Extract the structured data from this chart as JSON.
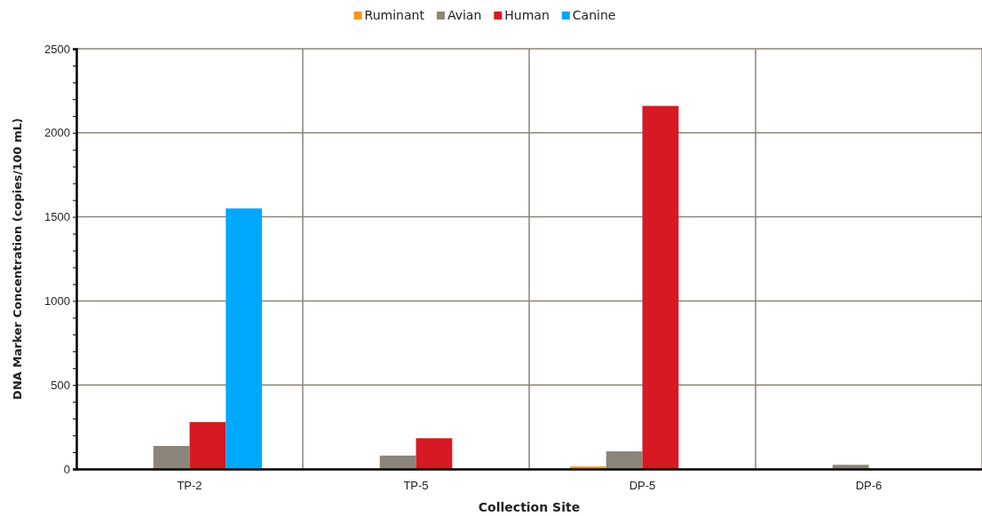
{
  "chart_data": {
    "type": "bar",
    "xlabel": "Collection Site",
    "ylabel": "DNA Marker Concentration (copies/100 mL)",
    "categories": [
      "TP-2",
      "TP-5",
      "DP-5",
      "DP-6"
    ],
    "series": [
      {
        "name": "Ruminant",
        "color": "#f7941d",
        "values": [
          0,
          0,
          15,
          0
        ]
      },
      {
        "name": "Avian",
        "color": "#8b8579",
        "values": [
          137,
          80,
          105,
          25
        ]
      },
      {
        "name": "Human",
        "color": "#d71923",
        "values": [
          279,
          183,
          2160,
          0
        ]
      },
      {
        "name": "Canine",
        "color": "#00a8ff",
        "values": [
          1550,
          0,
          0,
          0
        ]
      }
    ],
    "ylim": [
      0,
      2500
    ],
    "yticks": [
      0,
      {
        "value": 100,
        "label": null
      },
      {
        "value": 200,
        "label": null
      },
      {
        "value": 300,
        "label": null
      },
      {
        "value": 400,
        "label": null
      },
      500,
      {
        "value": 600,
        "label": null
      },
      {
        "value": 700,
        "label": null
      },
      {
        "value": 800,
        "label": null
      },
      {
        "value": 900,
        "label": null
      },
      1000,
      {
        "value": 1100,
        "label": null
      },
      {
        "value": 1200,
        "label": null
      },
      {
        "value": 1300,
        "label": null
      },
      {
        "value": 1400,
        "label": null
      },
      1500,
      {
        "value": 1600,
        "label": null
      },
      {
        "value": 1700,
        "label": null
      },
      {
        "value": 1800,
        "label": null
      },
      {
        "value": 1900,
        "label": null
      },
      2000,
      {
        "value": 2100,
        "label": null
      },
      {
        "value": 2200,
        "label": null
      },
      {
        "value": 2300,
        "label": null
      },
      {
        "value": 2400,
        "label": null
      },
      2500
    ],
    "grid": true,
    "legend": "top"
  }
}
